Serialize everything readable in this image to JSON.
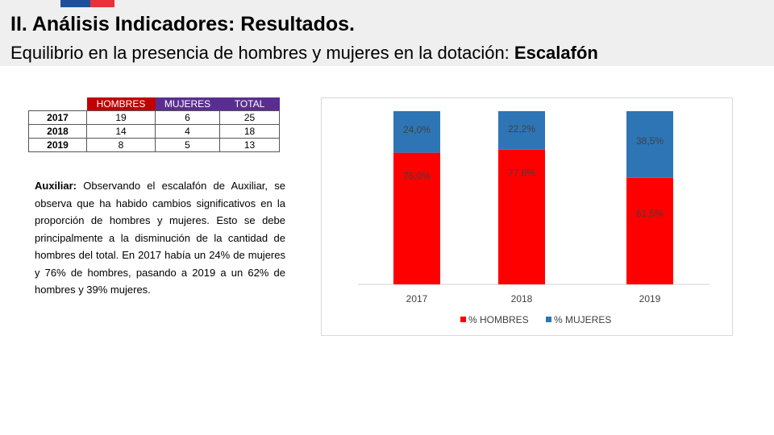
{
  "header": {
    "title": "II. Análisis Indicadores: Resultados.",
    "subtitle_prefix": "Equilibrio en la presencia de hombres y mujeres en la dotación: ",
    "subtitle_bold": "Escalafón"
  },
  "table": {
    "columns": [
      "HOMBRES",
      "MUJERES",
      "TOTAL"
    ],
    "rows": [
      {
        "year": "2017",
        "hombres": "19",
        "mujeres": "6",
        "total": "25"
      },
      {
        "year": "2018",
        "hombres": "14",
        "mujeres": "4",
        "total": "18"
      },
      {
        "year": "2019",
        "hombres": "8",
        "mujeres": "5",
        "total": "13"
      }
    ]
  },
  "paragraph": {
    "label": "Auxiliar:",
    "text": " Observando el escalafón de Auxiliar, se observa que ha habido cambios significativos en la proporción de hombres y mujeres. Esto se debe principalmente a la disminución de la cantidad de hombres del total. En 2017 había un 24% de mujeres y 76% de hombres, pasando a 2019 a un 62% de hombres y 39% mujeres."
  },
  "chart_data": {
    "type": "bar",
    "stacked": true,
    "categories": [
      "2017",
      "2018",
      "2019"
    ],
    "series": [
      {
        "name": "% HOMBRES",
        "values": [
          76.0,
          77.8,
          61.5
        ],
        "labels": [
          "76,0%",
          "77,8%",
          "61,5%"
        ],
        "color": "#ff0000"
      },
      {
        "name": "% MUJERES",
        "values": [
          24.0,
          22.2,
          38.5
        ],
        "labels": [
          "24,0%",
          "22,2%",
          "38,5%"
        ],
        "color": "#2e75b6"
      }
    ],
    "ylim": [
      0,
      100
    ],
    "legend": "bottom"
  }
}
